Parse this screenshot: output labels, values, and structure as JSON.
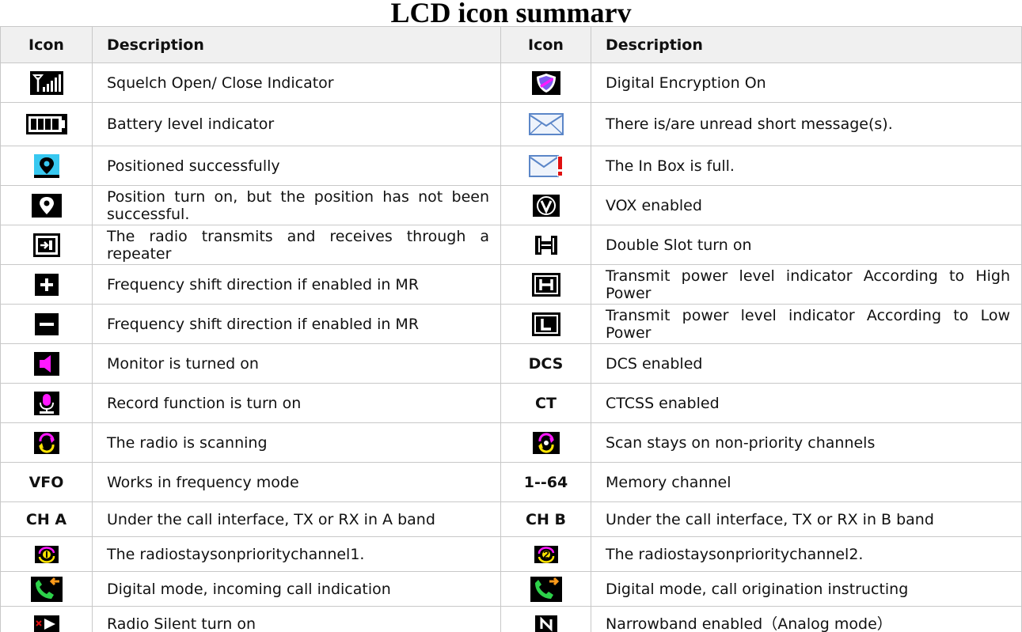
{
  "title": "LCD icon summarv",
  "headers": {
    "icon": "Icon",
    "description": "Description"
  },
  "rows": [
    {
      "left": {
        "icon": "squelch-signal-icon",
        "desc": "Squelch Open/ Close Indicator"
      },
      "right": {
        "icon": "encryption-shield-icon",
        "desc": "Digital Encryption On"
      }
    },
    {
      "left": {
        "icon": "battery-icon",
        "desc": "Battery level indicator"
      },
      "right": {
        "icon": "envelope-icon",
        "desc": "There is/are unread short message(s)."
      }
    },
    {
      "left": {
        "icon": "location-pin-cyan-icon",
        "desc": "Positioned successfully"
      },
      "right": {
        "icon": "envelope-full-icon",
        "desc": "The In Box is full."
      }
    },
    {
      "left": {
        "icon": "location-pin-white-icon",
        "desc": "Position turn on, but the position has not been successful."
      },
      "right": {
        "icon": "vox-icon",
        "desc": "VOX enabled"
      }
    },
    {
      "left": {
        "icon": "repeater-icon",
        "desc": "The radio transmits and receives through a repeater"
      },
      "right": {
        "icon": "double-slot-icon",
        "desc": "Double Slot turn on"
      }
    },
    {
      "left": {
        "icon": "plus-icon",
        "desc": "Frequency shift direction if enabled in MR"
      },
      "right": {
        "icon": "high-power-icon",
        "desc": "Transmit power level indicator According to High Power"
      }
    },
    {
      "left": {
        "icon": "minus-icon",
        "desc": "Frequency shift direction if enabled in MR"
      },
      "right": {
        "icon": "low-power-icon",
        "desc": "Transmit power level indicator According to Low Power"
      }
    },
    {
      "left": {
        "icon": "speaker-icon",
        "desc": "Monitor is turned on"
      },
      "right": {
        "text": "DCS",
        "desc": "DCS enabled"
      }
    },
    {
      "left": {
        "icon": "microphone-icon",
        "desc": "Record function is turn on"
      },
      "right": {
        "text": "CT",
        "desc": "CTCSS enabled"
      }
    },
    {
      "left": {
        "icon": "scan-icon",
        "desc": "The radio is scanning"
      },
      "right": {
        "icon": "scan-non-priority-icon",
        "desc": "Scan stays on non-priority channels"
      }
    },
    {
      "left": {
        "text": "VFO",
        "desc": "Works in frequency mode"
      },
      "right": {
        "text": "1--64",
        "desc": "Memory channel"
      }
    },
    {
      "left": {
        "text": "CH A",
        "desc": "Under the call interface, TX or RX in A band"
      },
      "right": {
        "text": "CH B",
        "desc": "Under the call interface, TX or RX in B band"
      }
    },
    {
      "left": {
        "icon": "priority-1-icon",
        "desc": "The radiostaysonprioritychannel1."
      },
      "right": {
        "icon": "priority-2-icon",
        "desc": "The radiostaysonprioritychannel2."
      }
    },
    {
      "left": {
        "icon": "incoming-call-icon",
        "desc": "Digital mode, incoming call indication"
      },
      "right": {
        "icon": "outgoing-call-icon",
        "desc": "Digital mode, call origination instructing"
      }
    },
    {
      "left": {
        "icon": "radio-silent-icon",
        "desc": "Radio Silent turn on"
      },
      "right": {
        "icon": "narrowband-icon",
        "desc": "Narrowband enabled（Analog mode）"
      }
    }
  ],
  "colors": {
    "cyan": "#38c8f0",
    "magenta": "#ff18ff",
    "yellow": "#ffe400",
    "orange": "#ff9a1a",
    "green": "#2dd24a",
    "red": "#e01010",
    "envelope_blue": "#5b86c8"
  }
}
